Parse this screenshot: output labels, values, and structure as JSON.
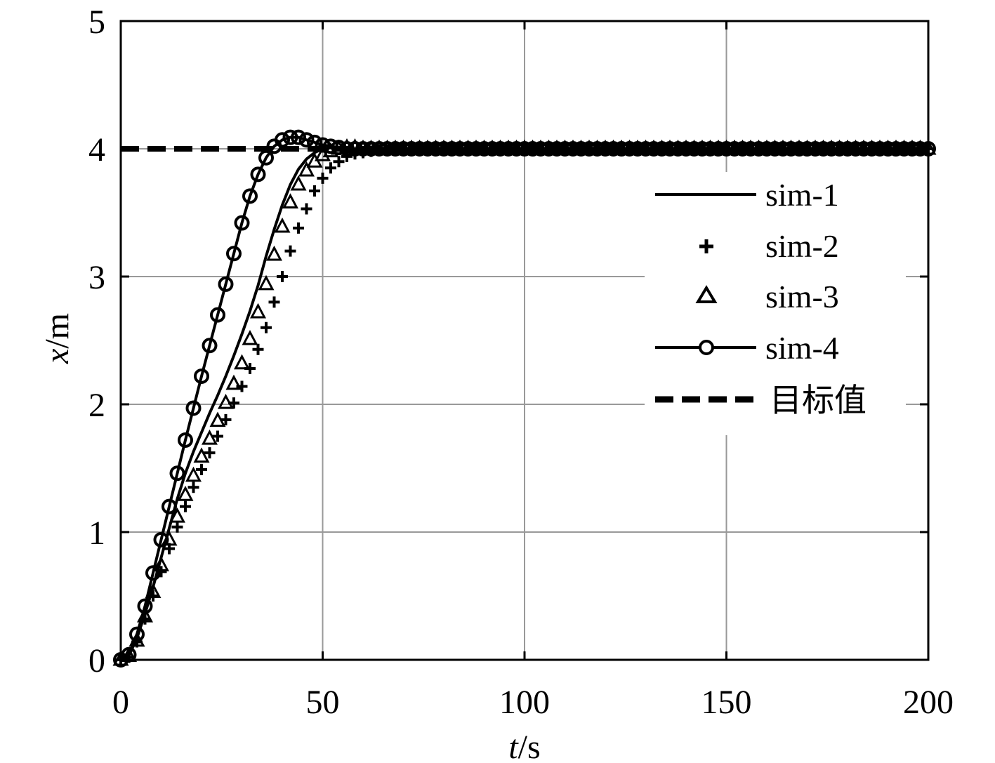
{
  "chart_data": {
    "type": "line",
    "title": "",
    "xlabel": {
      "var": "t",
      "unit": "/s"
    },
    "ylabel": {
      "var": "x",
      "unit": "/m"
    },
    "xlim": [
      0,
      200
    ],
    "ylim": [
      0,
      5
    ],
    "xticks": [
      0,
      50,
      100,
      150,
      200
    ],
    "yticks": [
      0,
      1,
      2,
      3,
      4,
      5
    ],
    "xtick_labels": [
      "0",
      "50",
      "100",
      "150",
      "200"
    ],
    "ytick_labels": [
      "0",
      "1",
      "2",
      "3",
      "4",
      "5"
    ],
    "grid": true,
    "legend_position": "right",
    "series": [
      {
        "name": "sim-1",
        "style": "solid",
        "x": [
          0,
          2,
          4,
          6,
          8,
          10,
          12,
          14,
          16,
          18,
          20,
          22,
          24,
          26,
          28,
          30,
          32,
          34,
          36,
          38,
          40,
          42,
          44,
          46,
          48,
          50,
          52,
          54,
          56,
          60,
          70,
          80,
          100,
          150,
          200
        ],
        "y": [
          0,
          0.03,
          0.17,
          0.36,
          0.57,
          0.8,
          1.03,
          1.26,
          1.46,
          1.63,
          1.78,
          1.93,
          2.07,
          2.22,
          2.38,
          2.55,
          2.73,
          2.93,
          3.16,
          3.37,
          3.56,
          3.72,
          3.84,
          3.92,
          3.97,
          4.0,
          4.01,
          4.01,
          4.0,
          4.0,
          4.0,
          4.0,
          4.0,
          4.0,
          4.0
        ]
      },
      {
        "name": "sim-2",
        "style": "plus",
        "x": [
          0,
          2,
          4,
          6,
          8,
          10,
          12,
          14,
          16,
          18,
          20,
          22,
          24,
          26,
          28,
          30,
          32,
          34,
          36,
          38,
          40,
          42,
          44,
          46,
          48,
          50,
          52,
          54,
          56,
          58,
          60,
          62,
          64,
          66,
          68,
          70,
          75,
          80,
          90,
          100,
          120,
          150,
          200
        ],
        "y": [
          0,
          0.02,
          0.14,
          0.32,
          0.5,
          0.69,
          0.87,
          1.04,
          1.2,
          1.35,
          1.49,
          1.62,
          1.75,
          1.88,
          2.01,
          2.14,
          2.28,
          2.43,
          2.6,
          2.8,
          3.0,
          3.2,
          3.38,
          3.53,
          3.67,
          3.77,
          3.85,
          3.9,
          3.94,
          3.96,
          3.97,
          3.98,
          3.99,
          3.99,
          4.0,
          4.0,
          4.0,
          4.0,
          4.0,
          4.0,
          4.0,
          4.0,
          4.0
        ]
      },
      {
        "name": "sim-3",
        "style": "triangle",
        "x": [
          0,
          2,
          4,
          6,
          8,
          10,
          12,
          14,
          16,
          18,
          20,
          22,
          24,
          26,
          28,
          30,
          32,
          34,
          36,
          38,
          40,
          42,
          44,
          46,
          48,
          50,
          52,
          54,
          56,
          58,
          60,
          64,
          68,
          72,
          80,
          90,
          100,
          150,
          200
        ],
        "y": [
          0,
          0.03,
          0.15,
          0.34,
          0.53,
          0.74,
          0.94,
          1.12,
          1.29,
          1.44,
          1.59,
          1.73,
          1.87,
          2.01,
          2.16,
          2.32,
          2.51,
          2.72,
          2.94,
          3.17,
          3.39,
          3.58,
          3.72,
          3.83,
          3.9,
          3.95,
          3.98,
          4.0,
          4.01,
          4.01,
          4.0,
          4.0,
          4.0,
          4.0,
          4.0,
          4.0,
          4.0,
          4.0,
          4.0
        ]
      },
      {
        "name": "sim-4",
        "style": "solid-circle",
        "x": [
          0,
          2,
          4,
          6,
          8,
          10,
          12,
          14,
          16,
          18,
          20,
          22,
          24,
          26,
          28,
          30,
          32,
          34,
          36,
          38,
          40,
          42,
          44,
          46,
          48,
          50,
          52,
          54,
          56,
          58,
          60,
          64,
          70,
          80,
          100,
          150,
          200
        ],
        "y": [
          0,
          0.04,
          0.2,
          0.42,
          0.68,
          0.94,
          1.2,
          1.46,
          1.72,
          1.97,
          2.22,
          2.46,
          2.7,
          2.94,
          3.18,
          3.42,
          3.63,
          3.8,
          3.93,
          4.02,
          4.07,
          4.09,
          4.09,
          4.07,
          4.05,
          4.03,
          4.02,
          4.01,
          4.0,
          4.0,
          4.0,
          4.0,
          4.0,
          4.0,
          4.0,
          4.0,
          4.0
        ]
      },
      {
        "name": "目标值",
        "style": "dashed",
        "x": [
          0,
          200
        ],
        "y": [
          4,
          4
        ]
      }
    ]
  }
}
